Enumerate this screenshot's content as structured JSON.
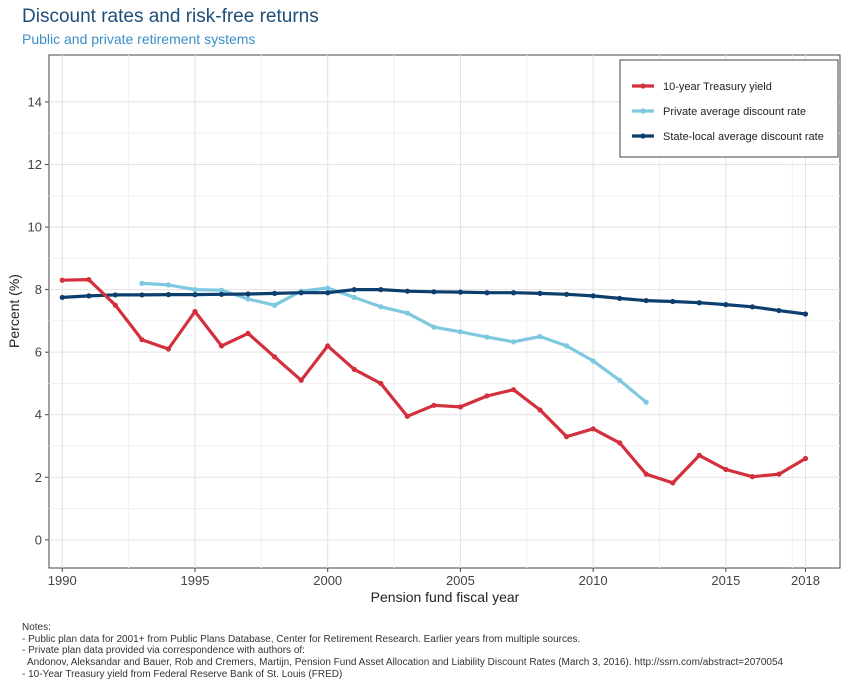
{
  "title": "Discount rates and risk-free returns",
  "subtitle": "Public and private retirement systems",
  "notes": [
    "Notes:",
    "- Public plan data for 2001+ from Public Plans Database, Center for Retirement Research. Earlier years from multiple sources.",
    "- Private plan data provided via correspondence with authors of:",
    "  Andonov, Aleksandar and Bauer, Rob and Cremers, Martijn, Pension Fund Asset Allocation and Liability Discount Rates (March 3, 2016). http://ssrn.com/abstract=2070054",
    "- 10-Year Treasury yield from Federal Reserve Bank of St. Louis (FRED)"
  ],
  "chart_data": {
    "type": "line",
    "title": "Discount rates and risk-free returns",
    "subtitle": "Public and private retirement systems",
    "xlabel": "Pension fund fiscal year",
    "ylabel": "Percent (%)",
    "xlim": [
      1989.5,
      2019.3
    ],
    "ylim": [
      -0.9,
      15.5
    ],
    "xticks": [
      1990,
      1995,
      2000,
      2005,
      2010,
      2015,
      2018
    ],
    "yticks": [
      0,
      2,
      4,
      6,
      8,
      10,
      12,
      14
    ],
    "grid": true,
    "legend_position": "top-right",
    "series": [
      {
        "name": "10-year Treasury yield",
        "color": "#d32f3c",
        "x": [
          1990,
          1991,
          1992,
          1993,
          1994,
          1995,
          1996,
          1997,
          1998,
          1999,
          2000,
          2001,
          2002,
          2003,
          2004,
          2005,
          2006,
          2007,
          2008,
          2009,
          2010,
          2011,
          2012,
          2013,
          2014,
          2015,
          2016,
          2017,
          2018
        ],
        "y": [
          8.3,
          8.32,
          7.5,
          6.4,
          6.1,
          7.3,
          6.2,
          6.6,
          5.85,
          5.1,
          6.2,
          5.45,
          5.0,
          3.95,
          4.3,
          4.25,
          4.6,
          4.8,
          4.15,
          3.3,
          3.55,
          3.1,
          2.1,
          1.82,
          2.7,
          2.25,
          2.02,
          2.1,
          2.6
        ]
      },
      {
        "name": "Private average discount rate",
        "color": "#7ec8e0",
        "x": [
          1993,
          1994,
          1995,
          1996,
          1997,
          1998,
          1999,
          2000,
          2001,
          2002,
          2003,
          2004,
          2005,
          2006,
          2007,
          2008,
          2009,
          2010,
          2011,
          2012
        ],
        "y": [
          8.2,
          8.15,
          8.0,
          7.98,
          7.7,
          7.5,
          7.95,
          8.05,
          7.75,
          7.45,
          7.25,
          6.8,
          6.65,
          6.48,
          6.33,
          6.5,
          6.2,
          5.72,
          5.1,
          4.4
        ]
      },
      {
        "name": "State-local average discount rate",
        "color": "#0d3f6e",
        "x": [
          1990,
          1991,
          1992,
          1993,
          1994,
          1995,
          1996,
          1997,
          1998,
          1999,
          2000,
          2001,
          2002,
          2003,
          2004,
          2005,
          2006,
          2007,
          2008,
          2009,
          2010,
          2011,
          2012,
          2013,
          2014,
          2015,
          2016,
          2017,
          2018
        ],
        "y": [
          7.75,
          7.8,
          7.83,
          7.83,
          7.84,
          7.84,
          7.85,
          7.86,
          7.88,
          7.9,
          7.9,
          8.0,
          8.0,
          7.95,
          7.93,
          7.92,
          7.9,
          7.9,
          7.88,
          7.85,
          7.8,
          7.72,
          7.65,
          7.62,
          7.58,
          7.52,
          7.45,
          7.33,
          7.22
        ]
      }
    ]
  }
}
